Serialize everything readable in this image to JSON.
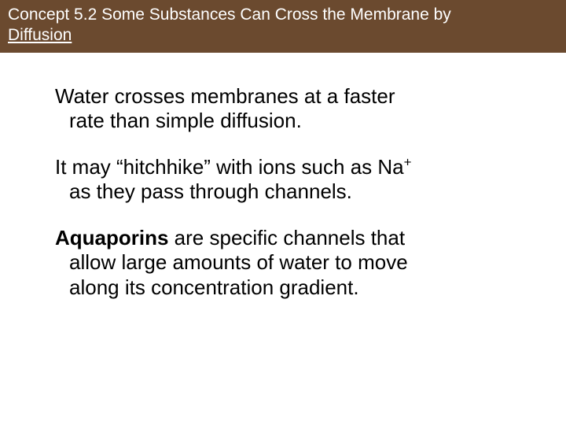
{
  "header": {
    "line1": "Concept 5.2 Some Substances Can Cross the Membrane by",
    "line2": "Diffusion"
  },
  "body": {
    "p1_a": "Water crosses membranes at a faster",
    "p1_b": "rate than simple diffusion.",
    "p2_a": "It may “hitchhike” with ions such as Na",
    "p2_sup": "+",
    "p2_b": "as they pass through channels.",
    "p3_bold": "Aquaporins",
    "p3_a": " are specific channels that",
    "p3_b": "allow large amounts of water to move",
    "p3_c": "along its concentration gradient."
  },
  "colors": {
    "header_bg": "#6b4a2f",
    "header_text": "#ffffff",
    "body_text": "#000000",
    "page_bg": "#ffffff"
  },
  "typography": {
    "header_fontsize": 21,
    "body_fontsize": 26,
    "font_family": "Arial"
  }
}
